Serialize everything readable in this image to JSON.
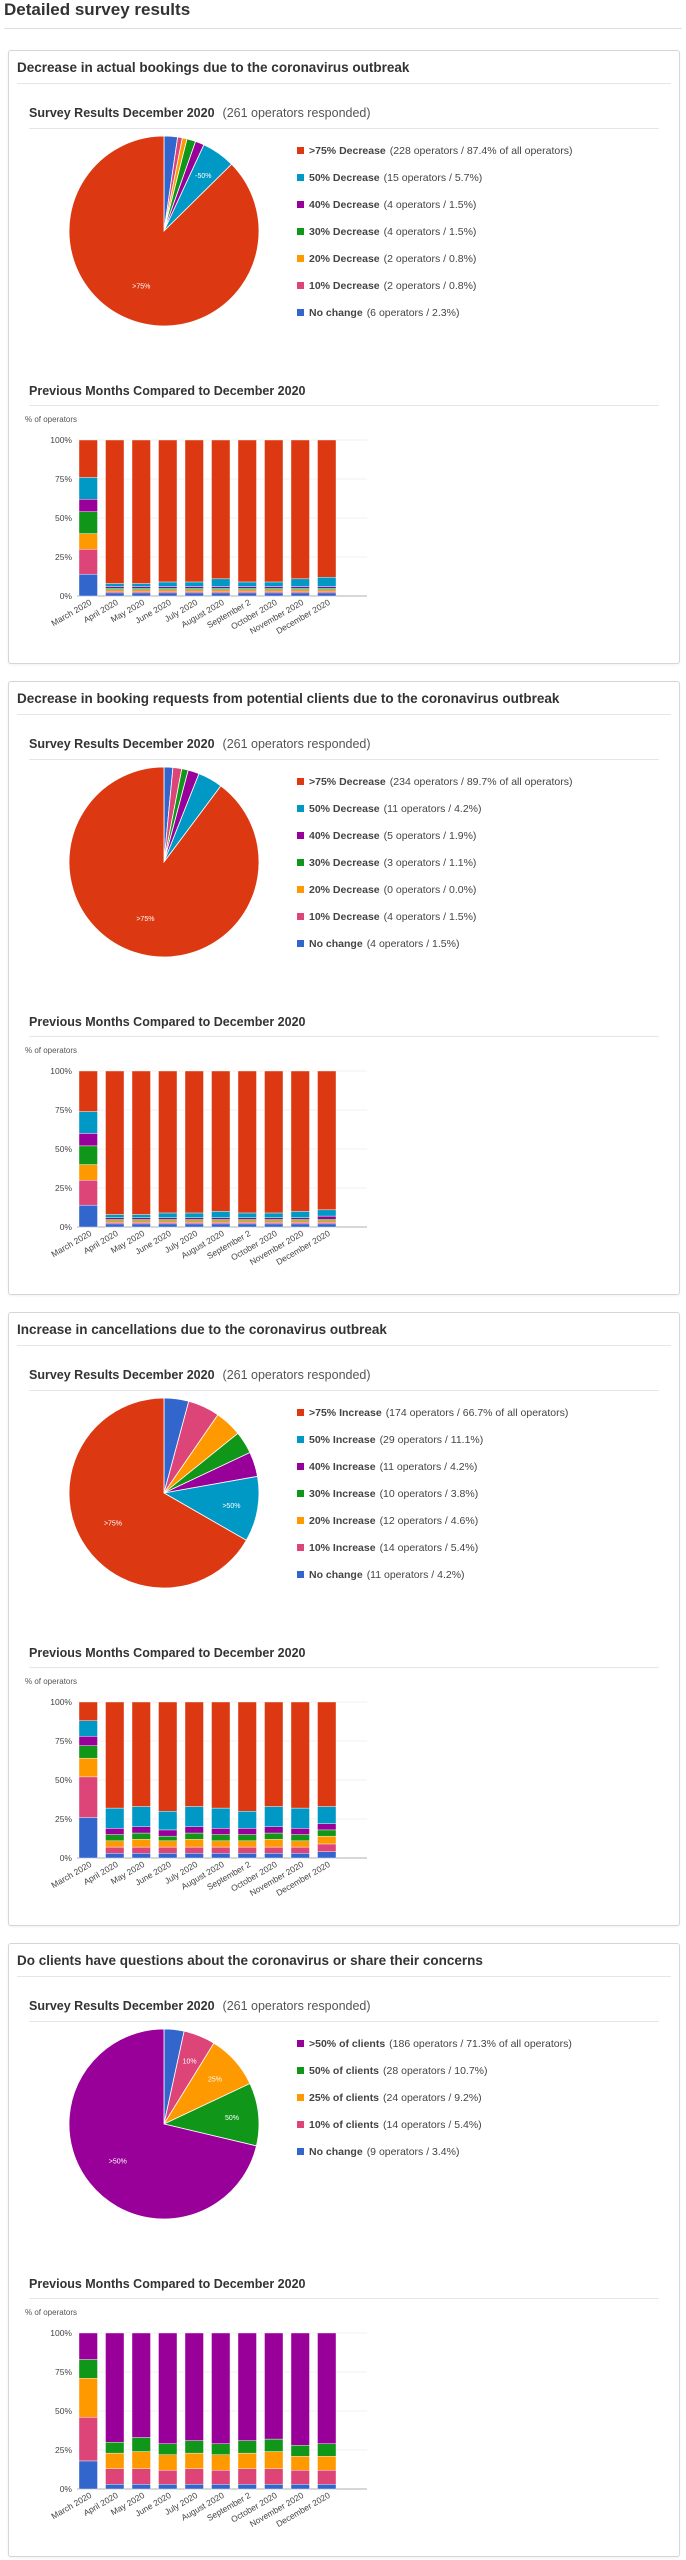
{
  "page_title": "Detailed survey results",
  "colors": {
    "75": "#dc3912",
    "50": "#0099c6",
    "40": "#990099",
    "30": "#109618",
    "20": "#ff9900",
    "10": "#dd4477",
    "no": "#3366cc",
    "q50": "#990099",
    "q25": "#ff9900",
    "q10": "#dd4477"
  },
  "survey_label": "Survey Results December 2020",
  "responded_text": "(261 operators responded)",
  "previous_label": "Previous Months Compared to December 2020",
  "y_axis_label": "% of operators",
  "months": [
    "March 2020",
    "April 2020",
    "May 2020",
    "June 2020",
    "July 2020",
    "August 2020",
    "September 2",
    "October 2020",
    "November 2020",
    "December 2020"
  ],
  "chart_data": [
    {
      "type": "pie",
      "title": "Decrease in actual bookings due to the coronavirus outbreak",
      "slices": [
        {
          "key": "75",
          "label": ">75% Decrease",
          "detail": "(228 operators / 87.4% of all operators)",
          "value": 87.4,
          "slice_text": ">75%"
        },
        {
          "key": "50",
          "label": "50% Decrease",
          "detail": "(15 operators / 5.7%)",
          "value": 5.7,
          "slice_text": "-50%"
        },
        {
          "key": "40",
          "label": "40% Decrease",
          "detail": "(4 operators / 1.5%)",
          "value": 1.5
        },
        {
          "key": "30",
          "label": "30% Decrease",
          "detail": "(4 operators / 1.5%)",
          "value": 1.5
        },
        {
          "key": "20",
          "label": "20% Decrease",
          "detail": "(2 operators / 0.8%)",
          "value": 0.8
        },
        {
          "key": "10",
          "label": "10% Decrease",
          "detail": "(2 operators / 0.8%)",
          "value": 0.8
        },
        {
          "key": "no",
          "label": "No change",
          "detail": "(6 operators / 2.3%)",
          "value": 2.3
        }
      ],
      "bars": {
        "type": "bar",
        "stacked": true,
        "ylim": [
          0,
          100
        ],
        "yticks": [
          "0%",
          "25%",
          "50%",
          "75%",
          "100%"
        ],
        "order": [
          "no",
          "10",
          "20",
          "30",
          "40",
          "50",
          "75"
        ],
        "series": {
          "no": [
            14,
            2,
            2,
            2,
            2,
            2,
            2,
            2,
            2,
            2
          ],
          "10": [
            16,
            1,
            1,
            1,
            1,
            1,
            1,
            1,
            1,
            1
          ],
          "20": [
            10,
            1,
            1,
            1,
            1,
            1,
            1,
            1,
            1,
            1
          ],
          "30": [
            14,
            1,
            1,
            1,
            1,
            1,
            1,
            1,
            1,
            1
          ],
          "40": [
            8,
            1,
            1,
            1,
            1,
            1,
            1,
            1,
            1,
            1
          ],
          "50": [
            14,
            2,
            2,
            3,
            3,
            5,
            3,
            3,
            5,
            6
          ],
          "75": [
            24,
            92,
            92,
            91,
            91,
            89,
            91,
            91,
            89,
            88
          ]
        }
      }
    },
    {
      "type": "pie",
      "title": "Decrease in booking requests from potential clients due to the coronavirus outbreak",
      "slices": [
        {
          "key": "75",
          "label": ">75% Decrease",
          "detail": "(234 operators / 89.7% of all operators)",
          "value": 89.7,
          "slice_text": ">75%"
        },
        {
          "key": "50",
          "label": "50% Decrease",
          "detail": "(11 operators / 4.2%)",
          "value": 4.2
        },
        {
          "key": "40",
          "label": "40% Decrease",
          "detail": "(5 operators / 1.9%)",
          "value": 1.9
        },
        {
          "key": "30",
          "label": "30% Decrease",
          "detail": "(3 operators / 1.1%)",
          "value": 1.1
        },
        {
          "key": "20",
          "label": "20% Decrease",
          "detail": "(0 operators / 0.0%)",
          "value": 0.0
        },
        {
          "key": "10",
          "label": "10% Decrease",
          "detail": "(4 operators / 1.5%)",
          "value": 1.5
        },
        {
          "key": "no",
          "label": "No change",
          "detail": "(4 operators / 1.5%)",
          "value": 1.5
        }
      ],
      "bars": {
        "type": "bar",
        "stacked": true,
        "ylim": [
          0,
          100
        ],
        "yticks": [
          "0%",
          "25%",
          "50%",
          "75%",
          "100%"
        ],
        "order": [
          "no",
          "10",
          "20",
          "30",
          "40",
          "50",
          "75"
        ],
        "series": {
          "no": [
            14,
            2,
            2,
            2,
            2,
            2,
            2,
            2,
            2,
            2
          ],
          "10": [
            16,
            1,
            1,
            1,
            1,
            1,
            1,
            1,
            1,
            1
          ],
          "20": [
            10,
            1,
            1,
            1,
            1,
            1,
            1,
            1,
            1,
            1
          ],
          "30": [
            12,
            1,
            1,
            1,
            1,
            1,
            1,
            1,
            1,
            1
          ],
          "40": [
            8,
            1,
            1,
            1,
            1,
            1,
            1,
            1,
            1,
            2
          ],
          "50": [
            14,
            2,
            2,
            3,
            3,
            4,
            3,
            3,
            4,
            4
          ],
          "75": [
            26,
            92,
            92,
            91,
            91,
            90,
            91,
            91,
            90,
            89
          ]
        }
      }
    },
    {
      "type": "pie",
      "title": "Increase in cancellations due to the coronavirus outbreak",
      "slices": [
        {
          "key": "75",
          "label": ">75% Increase",
          "detail": "(174 operators / 66.7% of all operators)",
          "value": 66.7,
          "slice_text": ">75%"
        },
        {
          "key": "50",
          "label": "50% Increase",
          "detail": "(29 operators / 11.1%)",
          "value": 11.1,
          "slice_text": ">50%"
        },
        {
          "key": "40",
          "label": "40% Increase",
          "detail": "(11 operators / 4.2%)",
          "value": 4.2
        },
        {
          "key": "30",
          "label": "30% Increase",
          "detail": "(10 operators / 3.8%)",
          "value": 3.8
        },
        {
          "key": "20",
          "label": "20% Increase",
          "detail": "(12 operators / 4.6%)",
          "value": 4.6
        },
        {
          "key": "10",
          "label": "10% Increase",
          "detail": "(14 operators / 5.4%)",
          "value": 5.4
        },
        {
          "key": "no",
          "label": "No change",
          "detail": "(11 operators / 4.2%)",
          "value": 4.2
        }
      ],
      "bars": {
        "type": "bar",
        "stacked": true,
        "ylim": [
          0,
          100
        ],
        "yticks": [
          "0%",
          "25%",
          "50%",
          "75%",
          "100%"
        ],
        "order": [
          "no",
          "10",
          "20",
          "30",
          "40",
          "50",
          "75"
        ],
        "series": {
          "no": [
            26,
            3,
            3,
            3,
            3,
            3,
            3,
            3,
            3,
            4
          ],
          "10": [
            26,
            4,
            4,
            4,
            4,
            4,
            4,
            4,
            4,
            5
          ],
          "20": [
            12,
            4,
            5,
            4,
            5,
            4,
            4,
            5,
            4,
            5
          ],
          "30": [
            8,
            4,
            4,
            3,
            4,
            4,
            4,
            4,
            4,
            4
          ],
          "40": [
            6,
            4,
            4,
            4,
            4,
            4,
            4,
            4,
            4,
            4
          ],
          "50": [
            10,
            13,
            13,
            12,
            13,
            13,
            11,
            13,
            13,
            11
          ],
          "75": [
            12,
            68,
            67,
            70,
            67,
            68,
            70,
            67,
            68,
            67
          ]
        }
      }
    },
    {
      "type": "pie",
      "title": "Do clients have questions about the coronavirus or share their concerns",
      "slices": [
        {
          "key": "q50",
          "label": ">50% of clients",
          "detail": "(186 operators / 71.3% of all operators)",
          "value": 71.3,
          "slice_text": ">50%"
        },
        {
          "key": "30",
          "label": "50% of clients",
          "detail": "(28 operators / 10.7%)",
          "value": 10.7,
          "slice_text": "50%"
        },
        {
          "key": "q25",
          "label": "25% of clients",
          "detail": "(24 operators / 9.2%)",
          "value": 9.2,
          "slice_text": "25%"
        },
        {
          "key": "q10",
          "label": "10% of clients",
          "detail": "(14 operators / 5.4%)",
          "value": 5.4,
          "slice_text": "10%"
        },
        {
          "key": "no",
          "label": "No change",
          "detail": "(9 operators / 3.4%)",
          "value": 3.4
        }
      ],
      "bars": {
        "type": "bar",
        "stacked": true,
        "ylim": [
          0,
          100
        ],
        "yticks": [
          "0%",
          "25%",
          "50%",
          "75%",
          "100%"
        ],
        "order": [
          "no",
          "q10",
          "q25",
          "30",
          "q50"
        ],
        "series": {
          "no": [
            18,
            3,
            3,
            3,
            3,
            3,
            3,
            3,
            3,
            3
          ],
          "q10": [
            28,
            10,
            10,
            9,
            10,
            9,
            10,
            10,
            9,
            9
          ],
          "q25": [
            25,
            10,
            11,
            10,
            10,
            10,
            10,
            11,
            9,
            9
          ],
          "30": [
            12,
            7,
            9,
            7,
            8,
            7,
            8,
            8,
            7,
            8
          ],
          "q50": [
            17,
            70,
            67,
            71,
            69,
            71,
            69,
            68,
            72,
            71
          ]
        }
      }
    }
  ]
}
